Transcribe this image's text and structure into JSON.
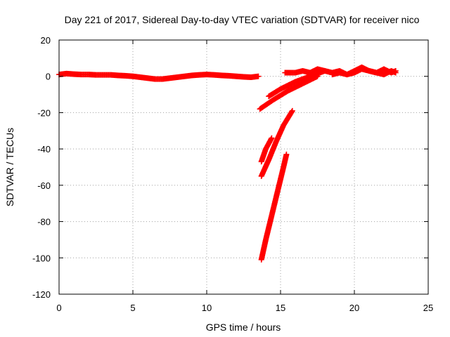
{
  "chart_data": {
    "type": "scatter",
    "title": "Day 221 of 2017, Sidereal Day-to-day VTEC variation (SDTVAR) for receiver nico",
    "xlabel": "GPS time / hours",
    "ylabel": "SDTVAR / TECUs",
    "xlim": [
      0,
      25
    ],
    "ylim": [
      -120,
      20
    ],
    "xticks": [
      0,
      5,
      10,
      15,
      20,
      25
    ],
    "yticks": [
      20,
      0,
      -20,
      -40,
      -60,
      -80,
      -100,
      -120
    ],
    "grid": true,
    "legend": "none",
    "series": [
      {
        "color": "#ff0000",
        "segments": [
          {
            "x": [
              0.0,
              0.5,
              1.0,
              1.5,
              2.0,
              2.5,
              3.0,
              3.5,
              4.0,
              4.5,
              5.0,
              5.5,
              6.0,
              6.5,
              7.0,
              7.5,
              8.0,
              8.5,
              9.0,
              9.5,
              10.0,
              10.5,
              11.0,
              11.5,
              12.0,
              12.5,
              13.0,
              13.5
            ],
            "y": [
              1.0,
              1.5,
              1.2,
              1.0,
              1.0,
              0.8,
              0.8,
              0.8,
              0.5,
              0.3,
              0.0,
              -0.5,
              -1.0,
              -1.5,
              -1.5,
              -1.0,
              -0.5,
              0.0,
              0.5,
              0.8,
              1.0,
              0.8,
              0.5,
              0.3,
              0.0,
              -0.3,
              -0.5,
              0.0
            ]
          },
          {
            "x": [
              13.6,
              14.5,
              15.5,
              16.5,
              17.5
            ],
            "y": [
              -18,
              -13,
              -8,
              -4,
              0
            ]
          },
          {
            "x": [
              14.2,
              15.0,
              16.0,
              17.0,
              18.0
            ],
            "y": [
              -11,
              -7,
              -3,
              0,
              3
            ]
          },
          {
            "x": [
              15.3,
              16.0,
              16.5,
              17.0,
              17.5,
              18.0,
              18.5,
              19.0,
              19.5,
              20.0,
              20.5,
              21.0,
              21.5,
              22.0,
              22.5,
              22.8
            ],
            "y": [
              2,
              2,
              3,
              2,
              4,
              3,
              2,
              3,
              1,
              2,
              4,
              3,
              2,
              4,
              2,
              3
            ]
          },
          {
            "x": [
              18.5,
              19.0,
              19.5,
              20.0,
              20.5,
              21.0,
              21.5,
              22.0,
              22.5,
              22.8
            ],
            "y": [
              1,
              2,
              1,
              3,
              5,
              3,
              2,
              1,
              3,
              2
            ]
          },
          {
            "x": [
              13.7,
              14.0,
              14.4
            ],
            "y": [
              -47,
              -40,
              -34
            ]
          },
          {
            "x": [
              13.7,
              14.2,
              14.7,
              15.2,
              15.8
            ],
            "y": [
              -55,
              -46,
              -36,
              -27,
              -19
            ]
          },
          {
            "x": [
              13.7,
              14.0,
              14.3,
              14.6,
              14.9,
              15.2,
              15.4
            ],
            "y": [
              -101,
              -90,
              -80,
              -70,
              -60,
              -50,
              -43
            ]
          }
        ]
      }
    ]
  }
}
